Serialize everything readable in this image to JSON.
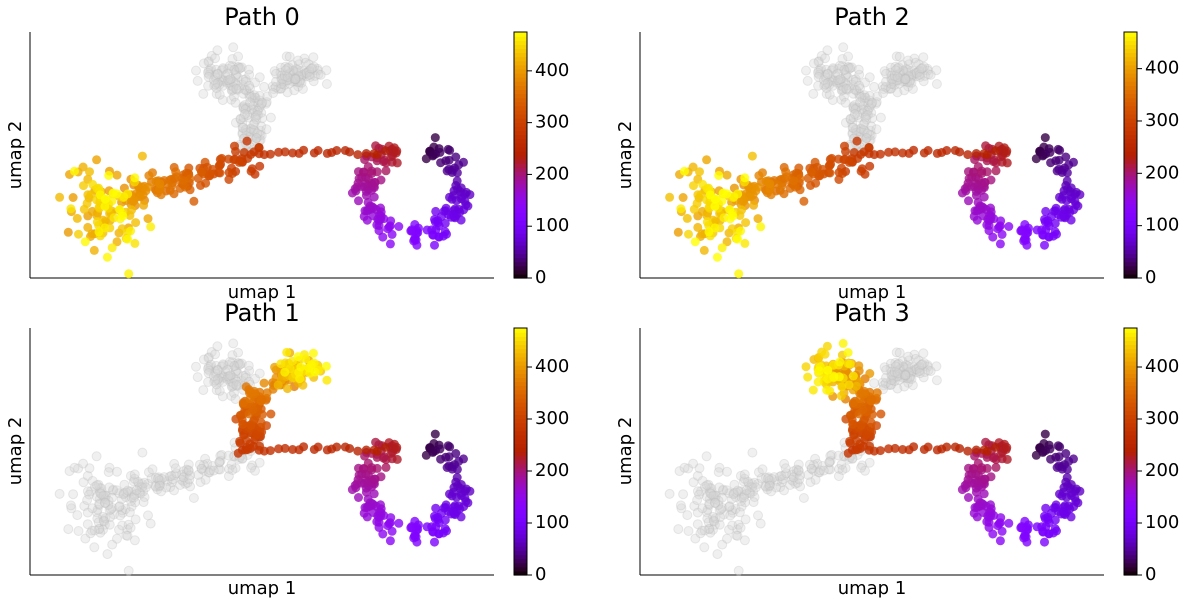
{
  "chart_data": [
    {
      "type": "scatter",
      "title": "Path 0",
      "xlabel": "umap 1",
      "ylabel": "umap 2",
      "colorbar": {
        "ticks": [
          0,
          100,
          200,
          300,
          400
        ],
        "range": [
          0,
          475
        ],
        "colormap": "gnuplot"
      },
      "branch_colored": "left",
      "inactive_color": "#d3d3d3"
    },
    {
      "type": "scatter",
      "title": "Path 2",
      "xlabel": "umap 1",
      "ylabel": "umap 2",
      "colorbar": {
        "ticks": [
          0,
          100,
          200,
          300,
          400
        ],
        "range": [
          0,
          470
        ],
        "colormap": "gnuplot"
      },
      "branch_colored": "left-upper",
      "inactive_color": "#d3d3d3"
    },
    {
      "type": "scatter",
      "title": "Path 1",
      "xlabel": "umap 1",
      "ylabel": "umap 2",
      "colorbar": {
        "ticks": [
          0,
          100,
          200,
          300,
          400
        ],
        "range": [
          0,
          475
        ],
        "colormap": "gnuplot"
      },
      "branch_colored": "top-right",
      "inactive_color": "#d3d3d3"
    },
    {
      "type": "scatter",
      "title": "Path 3",
      "xlabel": "umap 1",
      "ylabel": "umap 2",
      "colorbar": {
        "ticks": [
          0,
          100,
          200,
          300,
          400
        ],
        "range": [
          0,
          475
        ],
        "colormap": "gnuplot"
      },
      "branch_colored": "top-left",
      "inactive_color": "#d3d3d3"
    }
  ]
}
